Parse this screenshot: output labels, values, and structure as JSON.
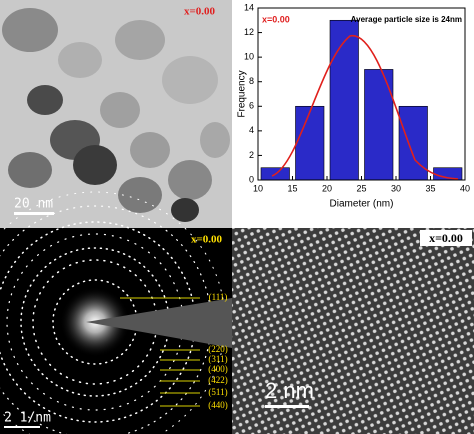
{
  "panels": {
    "tem": {
      "label": "x=0.00",
      "scale_bar": "20 nm"
    },
    "saed": {
      "label": "x=0.00",
      "rings": [
        "(111)",
        "(220)",
        "(311)",
        "(400)",
        "(422)",
        "(511)",
        "(440)"
      ],
      "scale_bar": "2 1/nm"
    },
    "hrtem": {
      "label": "x=0.00",
      "scale_bar": "2 nm"
    }
  },
  "chart_data": {
    "type": "histogram",
    "label": "x=0.00",
    "annotation": "Average particle size is 24nm",
    "x_label": "Diameter (nm)",
    "y_label": "Frequency",
    "bins": [
      10,
      15,
      20,
      25,
      30,
      35,
      40
    ],
    "counts": [
      1,
      6,
      13,
      9,
      6,
      1
    ],
    "color": "#2a2ac8",
    "fit_color": "#e0201c",
    "xlim": [
      10,
      40
    ],
    "xticks": [
      10,
      15,
      20,
      25,
      30,
      35,
      40
    ],
    "ylim": [
      0,
      14
    ],
    "yticks": [
      0,
      2,
      4,
      6,
      8,
      10,
      12,
      14
    ]
  }
}
